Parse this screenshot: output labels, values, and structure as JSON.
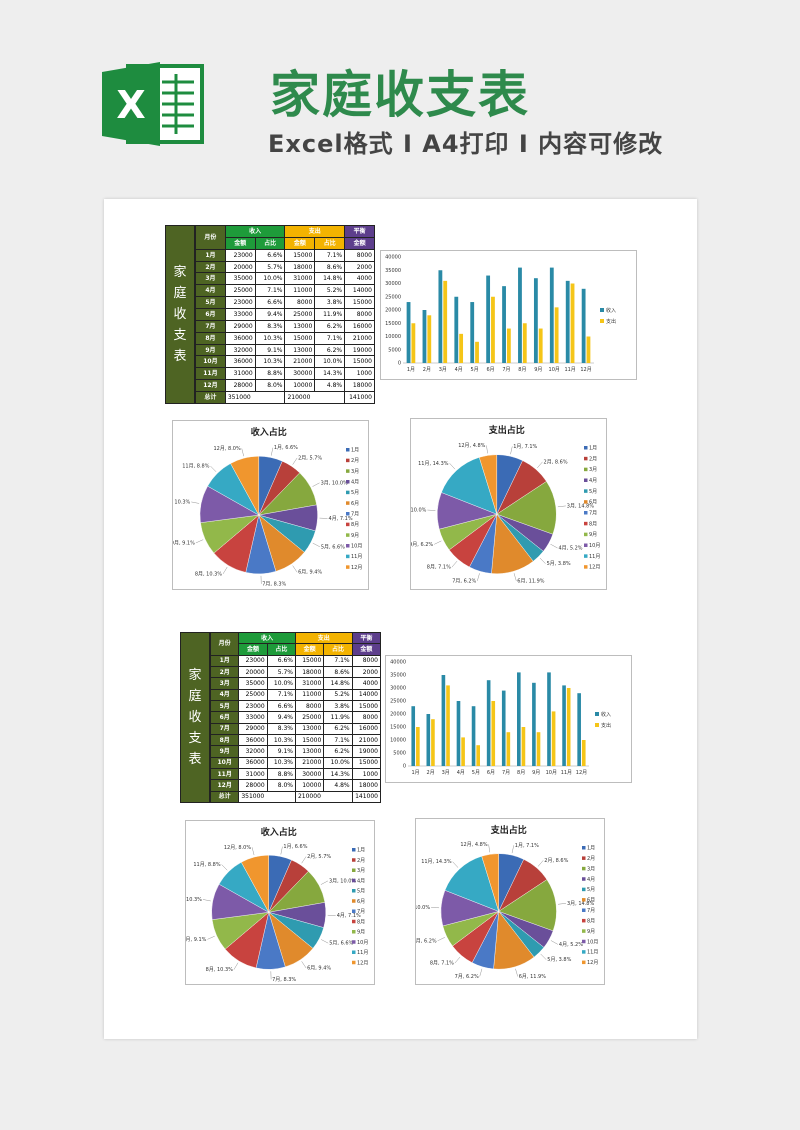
{
  "header": {
    "logo_letter": "X",
    "title": "家庭收支表",
    "subtitle": "Excel格式 I A4打印 I 内容可修改"
  },
  "sheet": {
    "side_title": "家庭收支表",
    "header_month": "月份",
    "header_income": "收入",
    "header_expense": "支出",
    "header_balance": "平衡",
    "sub_amount": "金额",
    "sub_ratio": "占比",
    "rows": [
      {
        "month": "1月",
        "in_amt": "23000",
        "in_pct": "6.6%",
        "out_amt": "15000",
        "out_pct": "7.1%",
        "bal": "8000"
      },
      {
        "month": "2月",
        "in_amt": "20000",
        "in_pct": "5.7%",
        "out_amt": "18000",
        "out_pct": "8.6%",
        "bal": "2000"
      },
      {
        "month": "3月",
        "in_amt": "35000",
        "in_pct": "10.0%",
        "out_amt": "31000",
        "out_pct": "14.8%",
        "bal": "4000"
      },
      {
        "month": "4月",
        "in_amt": "25000",
        "in_pct": "7.1%",
        "out_amt": "11000",
        "out_pct": "5.2%",
        "bal": "14000"
      },
      {
        "month": "5月",
        "in_amt": "23000",
        "in_pct": "6.6%",
        "out_amt": "8000",
        "out_pct": "3.8%",
        "bal": "15000"
      },
      {
        "month": "6月",
        "in_amt": "33000",
        "in_pct": "9.4%",
        "out_amt": "25000",
        "out_pct": "11.9%",
        "bal": "8000"
      },
      {
        "month": "7月",
        "in_amt": "29000",
        "in_pct": "8.3%",
        "out_amt": "13000",
        "out_pct": "6.2%",
        "bal": "16000"
      },
      {
        "month": "8月",
        "in_amt": "36000",
        "in_pct": "10.3%",
        "out_amt": "15000",
        "out_pct": "7.1%",
        "bal": "21000"
      },
      {
        "month": "9月",
        "in_amt": "32000",
        "in_pct": "9.1%",
        "out_amt": "13000",
        "out_pct": "6.2%",
        "bal": "19000"
      },
      {
        "month": "10月",
        "in_amt": "36000",
        "in_pct": "10.3%",
        "out_amt": "21000",
        "out_pct": "10.0%",
        "bal": "15000"
      },
      {
        "month": "11月",
        "in_amt": "31000",
        "in_pct": "8.8%",
        "out_amt": "30000",
        "out_pct": "14.3%",
        "bal": "1000"
      },
      {
        "month": "12月",
        "in_amt": "28000",
        "in_pct": "8.0%",
        "out_amt": "10000",
        "out_pct": "4.8%",
        "bal": "18000"
      }
    ],
    "total_label": "总计",
    "total_income": "351000",
    "total_expense": "210000",
    "total_balance": "141000"
  },
  "chart_data": [
    {
      "type": "bar",
      "categories": [
        "1月",
        "2月",
        "3月",
        "4月",
        "5月",
        "6月",
        "7月",
        "8月",
        "9月",
        "10月",
        "11月",
        "12月"
      ],
      "series": [
        {
          "name": "收入",
          "values": [
            23000,
            20000,
            35000,
            25000,
            23000,
            33000,
            29000,
            36000,
            32000,
            36000,
            31000,
            28000
          ],
          "color": "#2a8aa6"
        },
        {
          "name": "支出",
          "values": [
            15000,
            18000,
            31000,
            11000,
            8000,
            25000,
            13000,
            15000,
            13000,
            21000,
            30000,
            10000
          ],
          "color": "#f5c518"
        }
      ],
      "ylim": [
        0,
        40000
      ],
      "yticks": [
        0,
        5000,
        10000,
        15000,
        20000,
        25000,
        30000,
        35000,
        40000
      ],
      "legend": "right"
    },
    {
      "type": "pie",
      "title": "收入占比",
      "categories": [
        "1月",
        "2月",
        "3月",
        "4月",
        "5月",
        "6月",
        "7月",
        "8月",
        "9月",
        "10月",
        "11月",
        "12月"
      ],
      "values": [
        23000,
        20000,
        35000,
        25000,
        23000,
        33000,
        29000,
        36000,
        32000,
        36000,
        31000,
        28000
      ],
      "labels": [
        "1月, 6.6%",
        "2月, 5.7%",
        "3月, 10.0%",
        "4月, 7.1%",
        "5月, 6.6%",
        "6月, 9.4%",
        "7月, 8.3%",
        "8月, 10.3%",
        "9月, 9.1%",
        "10月, 10.3%",
        "11月, 8.8%",
        "12月, 8.0%"
      ],
      "legend": "right"
    },
    {
      "type": "pie",
      "title": "支出占比",
      "categories": [
        "1月",
        "2月",
        "3月",
        "4月",
        "5月",
        "6月",
        "7月",
        "8月",
        "9月",
        "10月",
        "11月",
        "12月"
      ],
      "values": [
        15000,
        18000,
        31000,
        11000,
        8000,
        25000,
        13000,
        15000,
        13000,
        21000,
        30000,
        10000
      ],
      "labels": [
        "1月, 7.1%",
        "2月, 8.6%",
        "3月, 14.8%",
        "4月, 5.2%",
        "5月, 3.8%",
        "6月, 11.9%",
        "7月, 6.2%",
        "8月, 7.1%",
        "9月, 6.2%",
        "10月, 10.0%",
        "11月, 14.3%",
        "12月, 4.8%"
      ],
      "legend": "right"
    }
  ],
  "pie_colors": [
    "#3b6bb5",
    "#b8403a",
    "#86a83e",
    "#6a4f9a",
    "#2f9bb0",
    "#e08a2c",
    "#4a79c6",
    "#c8433f",
    "#92b84a",
    "#7d5aa8",
    "#36a9c4",
    "#f0962e"
  ]
}
